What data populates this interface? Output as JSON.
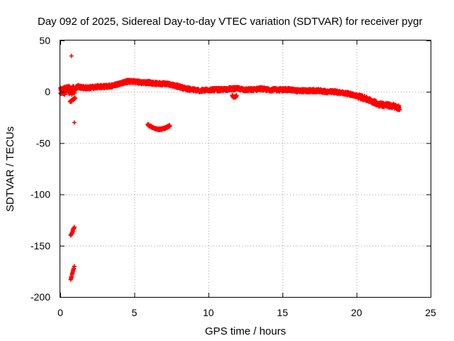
{
  "chart_data": {
    "type": "scatter",
    "title": "Day 092 of 2025, Sidereal Day-to-day VTEC variation (SDTVAR) for receiver pygr",
    "xlabel": "GPS time / hours",
    "ylabel": "SDTVAR / TECUs",
    "xlim": [
      0,
      25
    ],
    "ylim": [
      -200,
      50
    ],
    "xticks": [
      0,
      5,
      10,
      15,
      20,
      25
    ],
    "yticks": [
      50,
      0,
      -50,
      -100,
      -150,
      -200
    ],
    "grid": true,
    "marker": "+",
    "series_color": "#ff0000",
    "series": [
      {
        "name": "SDTVAR",
        "trend": [
          [
            0.0,
            0
          ],
          [
            0.2,
            1
          ],
          [
            0.5,
            2
          ],
          [
            0.8,
            1
          ],
          [
            1.0,
            3
          ],
          [
            1.2,
            5
          ],
          [
            1.5,
            4
          ],
          [
            2.0,
            4
          ],
          [
            2.5,
            5
          ],
          [
            3.0,
            5
          ],
          [
            3.5,
            6
          ],
          [
            4.0,
            8
          ],
          [
            4.5,
            10
          ],
          [
            5.0,
            10
          ],
          [
            5.5,
            9
          ],
          [
            6.0,
            9
          ],
          [
            6.5,
            8
          ],
          [
            7.0,
            8
          ],
          [
            7.5,
            7
          ],
          [
            8.0,
            5
          ],
          [
            8.5,
            3
          ],
          [
            9.0,
            2
          ],
          [
            9.5,
            1
          ],
          [
            10.0,
            2
          ],
          [
            10.5,
            2
          ],
          [
            11.0,
            2
          ],
          [
            11.5,
            3
          ],
          [
            12.0,
            3
          ],
          [
            12.5,
            2
          ],
          [
            13.0,
            2
          ],
          [
            13.5,
            3
          ],
          [
            14.0,
            2
          ],
          [
            14.5,
            2
          ],
          [
            15.0,
            2
          ],
          [
            15.5,
            2
          ],
          [
            16.0,
            1
          ],
          [
            16.5,
            1
          ],
          [
            17.0,
            1
          ],
          [
            17.5,
            1
          ],
          [
            18.0,
            0
          ],
          [
            18.5,
            0
          ],
          [
            19.0,
            -1
          ],
          [
            19.5,
            -2
          ],
          [
            20.0,
            -4
          ],
          [
            20.5,
            -6
          ],
          [
            21.0,
            -9
          ],
          [
            21.5,
            -12
          ],
          [
            22.0,
            -13
          ],
          [
            22.5,
            -14
          ],
          [
            22.9,
            -16
          ]
        ],
        "clusters": [
          {
            "x": [
              5.9,
              7.4
            ],
            "y_start": -32,
            "y_end": -33,
            "y_dip": -37
          },
          {
            "x": [
              0.7,
              0.95
            ],
            "y_start": -140,
            "y_end": -132,
            "y_dip": -140
          },
          {
            "x": [
              0.7,
              0.95
            ],
            "y_start": -183,
            "y_end": -170,
            "y_dip": -183
          },
          {
            "x": [
              0.65,
              1.0
            ],
            "y_start": -10,
            "y_end": -6,
            "y_dip": -10
          },
          {
            "x": [
              11.6,
              11.9
            ],
            "y_start": -4,
            "y_end": -4,
            "y_dip": -5
          }
        ],
        "outliers": [
          [
            0.75,
            35
          ],
          [
            0.95,
            -30
          ]
        ]
      }
    ]
  }
}
